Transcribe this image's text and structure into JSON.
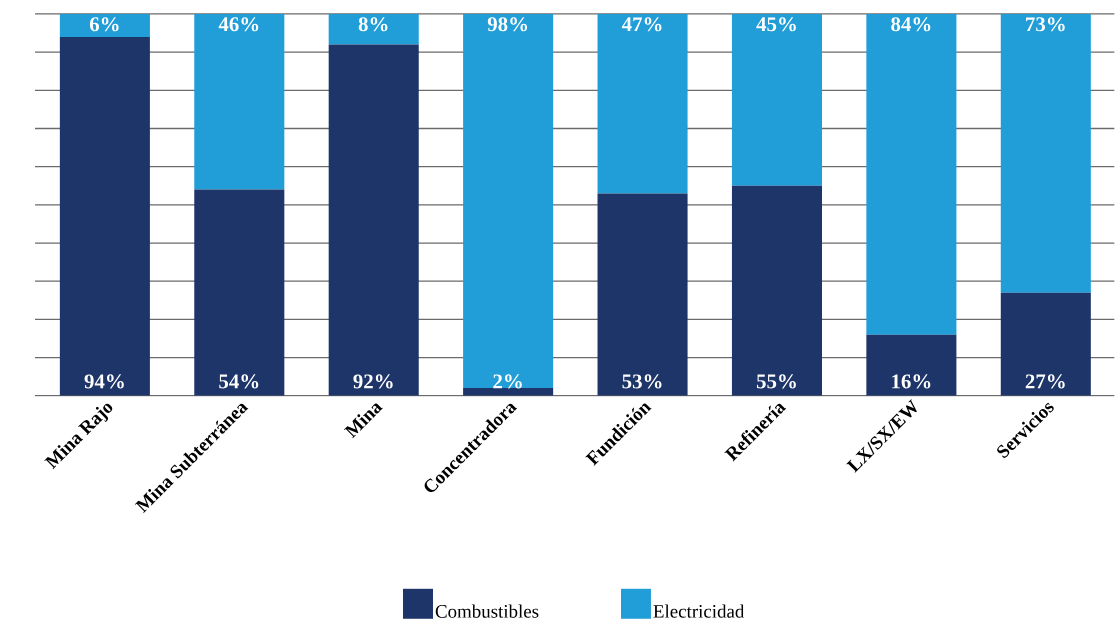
{
  "chart_data": {
    "type": "bar",
    "stacked": true,
    "categories": [
      "Mina Rajo",
      "Mina Subterránea",
      "Mina",
      "Concentradora",
      "Fundición",
      "Refinería",
      "LX/SX/EW",
      "Servicios"
    ],
    "series": [
      {
        "name": "Combustibles",
        "color": "#1e3569",
        "values": [
          94,
          54,
          92,
          2,
          53,
          55,
          16,
          27
        ],
        "value_labels": [
          "94%",
          "54%",
          "92%",
          "2%",
          "53%",
          "55%",
          "16%",
          "27%"
        ]
      },
      {
        "name": "Electricidad",
        "color": "#219dd8",
        "values": [
          6,
          46,
          8,
          98,
          47,
          45,
          84,
          73
        ],
        "value_labels": [
          "6%",
          "46%",
          "8%",
          "98%",
          "47%",
          "45%",
          "84%",
          "73%"
        ]
      }
    ],
    "tick_labels": "x",
    "grid": "y",
    "legend": "bottom"
  }
}
